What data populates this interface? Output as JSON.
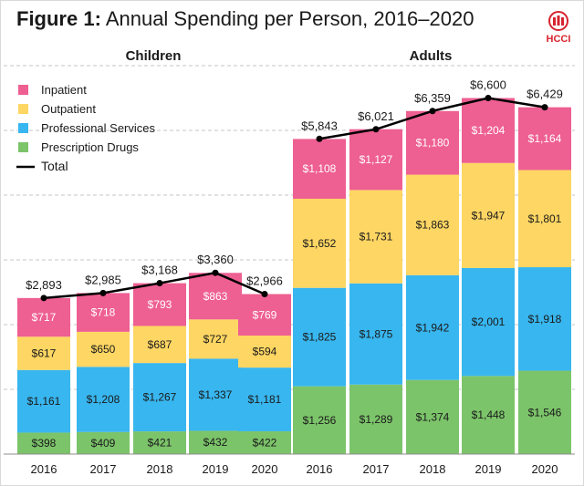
{
  "figure": {
    "label": "Figure 1:",
    "title": "Annual Spending per Person, 2016–2020"
  },
  "logo": {
    "text": "HCCI",
    "color": "#d7242f"
  },
  "chart_data": {
    "type": "bar",
    "stacked": true,
    "title": "Annual Spending per Person, 2016–2020",
    "ylim": [
      0,
      7200
    ],
    "grid": true,
    "legend_position": "top-left",
    "groups": [
      {
        "name": "Children",
        "categories": [
          "2016",
          "2017",
          "2018",
          "2019",
          "2020"
        ],
        "series": [
          {
            "name": "Prescription Drugs",
            "color": "#7cc46a",
            "values": [
              398,
              409,
              421,
              432,
              422
            ],
            "labels": [
              "$398",
              "$409",
              "$421",
              "$432",
              "$422"
            ]
          },
          {
            "name": "Professional Services",
            "color": "#38b6ef",
            "values": [
              1161,
              1208,
              1267,
              1337,
              1181
            ],
            "labels": [
              "$1,161",
              "$1,208",
              "$1,267",
              "$1,337",
              "$1,181"
            ]
          },
          {
            "name": "Outpatient",
            "color": "#fdd663",
            "values": [
              617,
              650,
              687,
              727,
              594
            ],
            "labels": [
              "$617",
              "$650",
              "$687",
              "$727",
              "$594"
            ]
          },
          {
            "name": "Inpatient",
            "color": "#ee5f92",
            "values": [
              717,
              718,
              793,
              863,
              769
            ],
            "labels": [
              "$717",
              "$718",
              "$793",
              "$863",
              "$769"
            ]
          }
        ],
        "total": {
          "name": "Total",
          "values": [
            2893,
            2985,
            3168,
            3360,
            2966
          ],
          "labels": [
            "$2,893",
            "$2,985",
            "$3,168",
            "$3,360",
            "$2,966"
          ]
        }
      },
      {
        "name": "Adults",
        "categories": [
          "2016",
          "2017",
          "2018",
          "2019",
          "2020"
        ],
        "series": [
          {
            "name": "Prescription Drugs",
            "color": "#7cc46a",
            "values": [
              1256,
              1289,
              1374,
              1448,
              1546
            ],
            "labels": [
              "$1,256",
              "$1,289",
              "$1,374",
              "$1,448",
              "$1,546"
            ]
          },
          {
            "name": "Professional Services",
            "color": "#38b6ef",
            "values": [
              1825,
              1875,
              1942,
              2001,
              1918
            ],
            "labels": [
              "$1,825",
              "$1,875",
              "$1,942",
              "$2,001",
              "$1,918"
            ]
          },
          {
            "name": "Outpatient",
            "color": "#fdd663",
            "values": [
              1652,
              1731,
              1863,
              1947,
              1801
            ],
            "labels": [
              "$1,652",
              "$1,731",
              "$1,863",
              "$1,947",
              "$1,801"
            ]
          },
          {
            "name": "Inpatient",
            "color": "#ee5f92",
            "values": [
              1108,
              1127,
              1180,
              1204,
              1164
            ],
            "labels": [
              "$1,108",
              "$1,127",
              "$1,180",
              "$1,204",
              "$1,164"
            ]
          }
        ],
        "total": {
          "name": "Total",
          "values": [
            5843,
            6021,
            6359,
            6600,
            6429
          ],
          "labels": [
            "$5,843",
            "$6,021",
            "$6,359",
            "$6,600",
            "$6,429"
          ]
        }
      }
    ],
    "legend": [
      {
        "name": "Inpatient",
        "color": "#ee5f92",
        "kind": "swatch"
      },
      {
        "name": "Outpatient",
        "color": "#fdd663",
        "kind": "swatch"
      },
      {
        "name": "Professional Services",
        "color": "#38b6ef",
        "kind": "swatch"
      },
      {
        "name": "Prescription Drugs",
        "color": "#7cc46a",
        "kind": "swatch"
      },
      {
        "name": "Total",
        "color": "#000000",
        "kind": "line"
      }
    ]
  }
}
